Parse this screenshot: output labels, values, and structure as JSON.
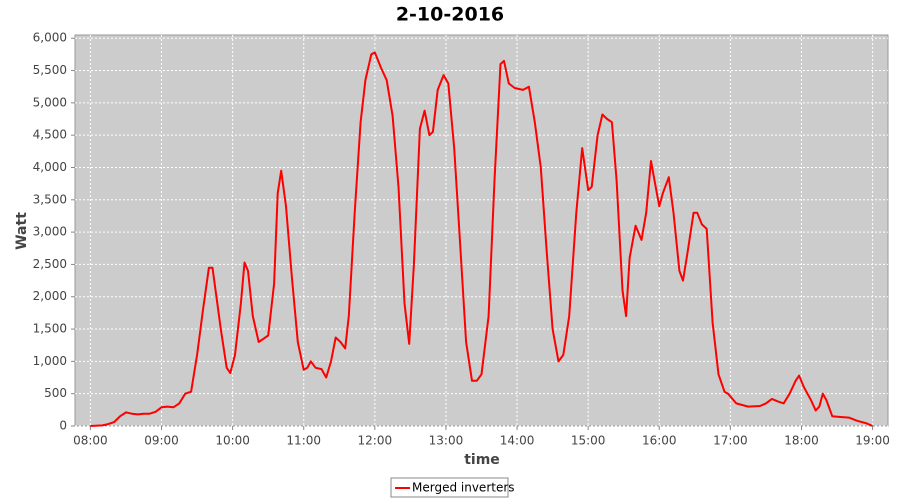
{
  "chart_data": {
    "type": "line",
    "title": "2-10-2016",
    "xlabel": "time",
    "ylabel": "Watt",
    "x": [
      "08:00",
      "08:10",
      "08:15",
      "08:20",
      "08:25",
      "08:30",
      "08:35",
      "08:40",
      "08:45",
      "08:50",
      "08:55",
      "09:00",
      "09:05",
      "09:10",
      "09:15",
      "09:20",
      "09:25",
      "09:30",
      "09:35",
      "09:40",
      "09:43",
      "09:50",
      "09:55",
      "09:58",
      "10:02",
      "10:07",
      "10:10",
      "10:13",
      "10:17",
      "10:22",
      "10:26",
      "10:30",
      "10:35",
      "10:38",
      "10:41",
      "10:45",
      "10:50",
      "10:55",
      "11:00",
      "11:03",
      "11:06",
      "11:10",
      "11:15",
      "11:19",
      "11:23",
      "11:27",
      "11:31",
      "11:35",
      "11:38",
      "11:43",
      "11:48",
      "11:52",
      "11:57",
      "12:00",
      "12:05",
      "12:10",
      "12:15",
      "12:20",
      "12:25",
      "12:29",
      "12:33",
      "12:38",
      "12:42",
      "12:46",
      "12:49",
      "12:53",
      "12:58",
      "13:02",
      "13:07",
      "13:12",
      "13:17",
      "13:22",
      "13:26",
      "13:30",
      "13:36",
      "13:41",
      "13:46",
      "13:49",
      "13:53",
      "13:58",
      "14:05",
      "14:10",
      "14:15",
      "14:20",
      "14:25",
      "14:30",
      "14:35",
      "14:39",
      "14:44",
      "14:50",
      "14:55",
      "15:00",
      "15:03",
      "15:08",
      "15:12",
      "15:16",
      "15:20",
      "15:24",
      "15:29",
      "15:32",
      "15:35",
      "15:40",
      "15:45",
      "15:49",
      "15:53",
      "15:56",
      "16:00",
      "16:03",
      "16:08",
      "16:12",
      "16:17",
      "16:20",
      "16:24",
      "16:29",
      "16:32",
      "16:36",
      "16:40",
      "16:45",
      "16:50",
      "16:55",
      "16:58",
      "17:05",
      "17:15",
      "17:25",
      "17:30",
      "17:35",
      "17:40",
      "17:45",
      "17:50",
      "17:55",
      "17:58",
      "18:02",
      "18:08",
      "18:12",
      "18:15",
      "18:18",
      "18:21",
      "18:26",
      "18:33",
      "18:40",
      "18:47",
      "18:55",
      "19:00"
    ],
    "series": [
      {
        "name": "Merged inverters",
        "color": "#ff0000",
        "values": [
          0,
          10,
          30,
          60,
          150,
          210,
          190,
          180,
          190,
          190,
          220,
          290,
          300,
          290,
          350,
          500,
          530,
          1100,
          1800,
          2450,
          2450,
          1500,
          900,
          820,
          1100,
          1900,
          2530,
          2400,
          1700,
          1300,
          1350,
          1400,
          2200,
          3600,
          3950,
          3400,
          2300,
          1300,
          870,
          900,
          1000,
          900,
          880,
          750,
          1000,
          1370,
          1300,
          1200,
          1700,
          3300,
          4700,
          5350,
          5750,
          5780,
          5550,
          5350,
          4800,
          3700,
          1900,
          1270,
          2500,
          4600,
          4880,
          4500,
          4550,
          5200,
          5430,
          5300,
          4300,
          2800,
          1300,
          700,
          700,
          800,
          1700,
          3800,
          5600,
          5650,
          5300,
          5230,
          5200,
          5250,
          4700,
          4000,
          2700,
          1500,
          1000,
          1100,
          1700,
          3300,
          4300,
          3650,
          3700,
          4500,
          4820,
          4750,
          4700,
          3800,
          2100,
          1700,
          2600,
          3100,
          2880,
          3300,
          4100,
          3800,
          3400,
          3600,
          3850,
          3300,
          2400,
          2250,
          2700,
          3300,
          3300,
          3120,
          3050,
          1600,
          800,
          530,
          500,
          350,
          300,
          310,
          350,
          420,
          380,
          350,
          500,
          700,
          780,
          600,
          400,
          240,
          300,
          500,
          400,
          150,
          140,
          130,
          80,
          40,
          0
        ]
      }
    ],
    "xlim": [
      "07:47",
      "19:13"
    ],
    "xticks": [
      "08:00",
      "09:00",
      "10:00",
      "11:00",
      "12:00",
      "13:00",
      "14:00",
      "15:00",
      "16:00",
      "17:00",
      "18:00",
      "19:00"
    ],
    "ylim": [
      0,
      6050
    ],
    "yticks": [
      0,
      500,
      {
        "value": 1000,
        "label": "1,000"
      },
      {
        "value": 1500,
        "label": "1,500"
      },
      {
        "value": 2000,
        "label": "2,000"
      },
      {
        "value": 2500,
        "label": "2,500"
      },
      {
        "value": 3000,
        "label": "3,000"
      },
      {
        "value": 3500,
        "label": "3,500"
      },
      {
        "value": 4000,
        "label": "4,000"
      },
      {
        "value": 4500,
        "label": "4,500"
      },
      {
        "value": 5000,
        "label": "5,000"
      },
      {
        "value": 5500,
        "label": "5,500"
      },
      {
        "value": 6000,
        "label": "6,000"
      }
    ],
    "grid": true
  }
}
